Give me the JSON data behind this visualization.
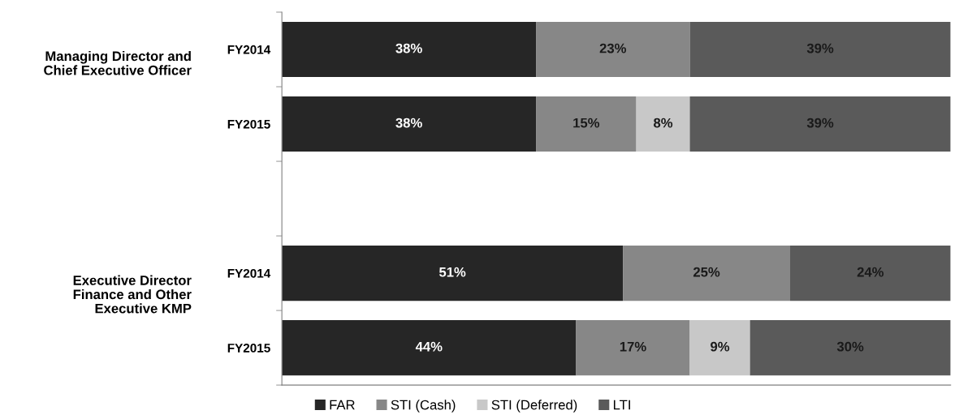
{
  "chart_data": {
    "type": "bar",
    "orientation": "horizontal",
    "stacked": true,
    "categories": [
      "FY2014",
      "FY2015",
      null,
      "FY2014",
      "FY2015"
    ],
    "series": [
      {
        "name": "FAR",
        "color": "#262626",
        "values": [
          38,
          38,
          null,
          51,
          44
        ],
        "value_labels": [
          "38%",
          "38%",
          null,
          "51%",
          "44%"
        ]
      },
      {
        "name": "STI (Cash)",
        "color": "#878787",
        "values": [
          23,
          15,
          null,
          25,
          17
        ],
        "value_labels": [
          "23%",
          "15%",
          null,
          "25%",
          "17%"
        ]
      },
      {
        "name": "STI (Deferred)",
        "color": "#c8c8c8",
        "values": [
          0,
          8,
          null,
          0,
          9
        ],
        "value_labels": [
          null,
          "8%",
          null,
          null,
          "9%"
        ]
      },
      {
        "name": "LTI",
        "color": "#5a5a5a",
        "values": [
          39,
          39,
          null,
          24,
          30
        ],
        "value_labels": [
          "39%",
          "39%",
          null,
          "24%",
          "30%"
        ]
      }
    ],
    "xlim": [
      0,
      100
    ],
    "tick_labels": "y",
    "legend": "bottom",
    "grid": false,
    "annotations": [
      "Managing Director and\nChief Executive Officer",
      "Executive Director\nFinance and Other\nExecutive KMP"
    ]
  }
}
